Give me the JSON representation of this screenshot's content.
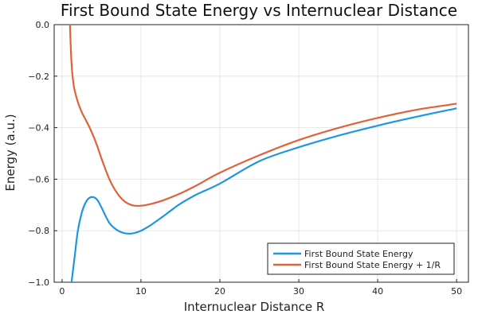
{
  "chart_data": {
    "type": "line",
    "title": "First Bound State Energy vs Internuclear Distance",
    "xlabel": "Internuclear Distance R",
    "ylabel": "Energy (a.u.)",
    "xlim": [
      -1,
      51.5
    ],
    "ylim": [
      -1.0,
      0.0
    ],
    "xticks": [
      0,
      10,
      20,
      30,
      40,
      50
    ],
    "xtick_labels": [
      "0",
      "10",
      "20",
      "30",
      "40",
      "50"
    ],
    "yticks": [
      -1.0,
      -0.8,
      -0.6,
      -0.4,
      -0.2,
      0.0
    ],
    "ytick_labels": [
      "−1.0",
      "−0.8",
      "−0.6",
      "−0.4",
      "−0.2",
      "0.0"
    ],
    "grid": true,
    "legend_position": "bottom-right",
    "series": [
      {
        "name": "First Bound State Energy",
        "color": "#1f96e0",
        "x": [
          1.2,
          1.6,
          2.0,
          2.5,
          3.0,
          3.5,
          4.0,
          4.5,
          5.0,
          6.0,
          7.0,
          8.0,
          9.0,
          10.0,
          11.0,
          12.0,
          13.0,
          14.0,
          15.0,
          17.0,
          20.0,
          25.0,
          30.0,
          35.0,
          40.0,
          45.0,
          50.0
        ],
        "y": [
          -1.0,
          -0.9,
          -0.8,
          -0.73,
          -0.69,
          -0.672,
          -0.67,
          -0.682,
          -0.71,
          -0.77,
          -0.798,
          -0.81,
          -0.81,
          -0.8,
          -0.783,
          -0.762,
          -0.74,
          -0.717,
          -0.695,
          -0.66,
          -0.617,
          -0.53,
          -0.476,
          -0.431,
          -0.392,
          -0.357,
          -0.325
        ]
      },
      {
        "name": "First Bound State Energy + 1/R",
        "color": "#e0623a",
        "x": [
          1.0,
          1.2,
          1.5,
          2.0,
          2.5,
          3.0,
          3.5,
          4.0,
          4.5,
          5.0,
          6.0,
          7.0,
          8.0,
          9.0,
          10.0,
          11.0,
          12.0,
          13.0,
          15.0,
          17.0,
          20.0,
          25.0,
          30.0,
          35.0,
          40.0,
          45.0,
          50.0
        ],
        "y": [
          0.0,
          -0.15,
          -0.24,
          -0.3,
          -0.34,
          -0.37,
          -0.4,
          -0.435,
          -0.475,
          -0.52,
          -0.6,
          -0.655,
          -0.688,
          -0.702,
          -0.703,
          -0.698,
          -0.69,
          -0.68,
          -0.655,
          -0.625,
          -0.575,
          -0.507,
          -0.448,
          -0.401,
          -0.362,
          -0.33,
          -0.307
        ]
      }
    ]
  }
}
